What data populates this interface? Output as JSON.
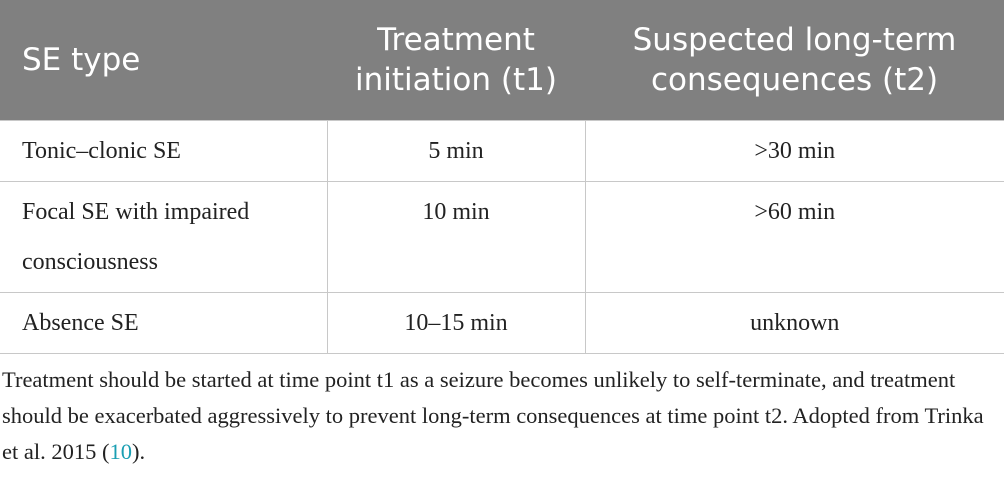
{
  "table": {
    "header": [
      "SE type",
      "Treatment initiation (t1)",
      "Suspected long-term consequences (t2)"
    ],
    "rows": [
      [
        "Tonic–clonic SE",
        "5 min",
        ">30 min"
      ],
      [
        "Focal SE with impaired consciousness",
        "10 min",
        ">60 min"
      ],
      [
        "Absence SE",
        "10–15 min",
        "unknown"
      ]
    ]
  },
  "caption": {
    "text_before": "Treatment should be started at time point t1 as a seizure becomes unlikely to self-terminate, and treatment should be exacerbated aggressively to prevent long-term consequences at time point t2. Adopted from Trinka et al. 2015 (",
    "citation": "10",
    "text_after": ")."
  }
}
